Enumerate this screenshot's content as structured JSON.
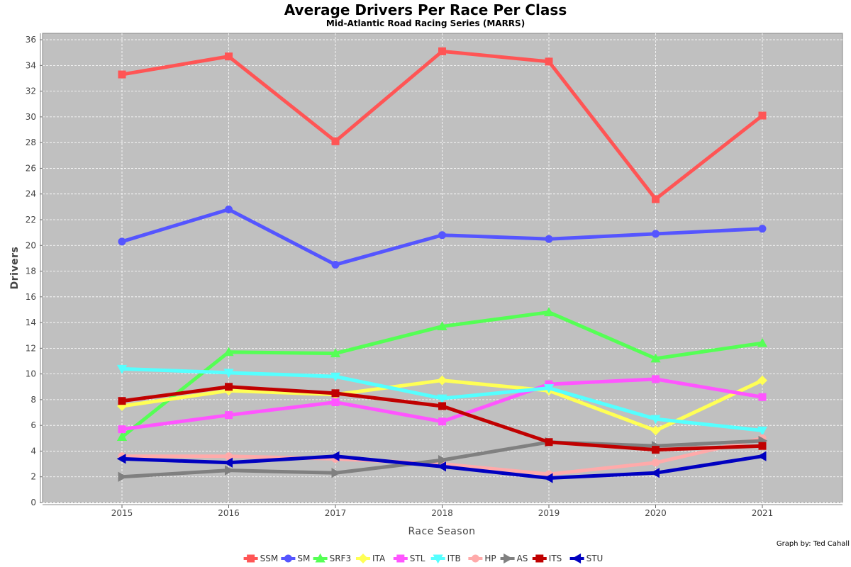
{
  "chart_data": {
    "type": "line",
    "title": "Average Drivers Per Race Per Class",
    "subtitle": "Mid-Atlantic Road Racing Series (MARRS)",
    "xlabel": "Race Season",
    "ylabel": "Drivers",
    "credit": "Graph by: Ted Cahall",
    "categories": [
      "2015",
      "2016",
      "2017",
      "2018",
      "2019",
      "2020",
      "2021"
    ],
    "ylim": [
      0,
      36.5
    ],
    "yticks": [
      "0",
      "2",
      "4",
      "6",
      "8",
      "10",
      "12",
      "14",
      "16",
      "18",
      "20",
      "22",
      "24",
      "26",
      "28",
      "30",
      "32",
      "34",
      "36"
    ],
    "grid": true,
    "legend_position": "bottom",
    "background_color": "#c0c0c0",
    "series": [
      {
        "name": "SSM",
        "color": "#ff5555",
        "marker": "square",
        "values": [
          33.3,
          34.7,
          28.1,
          35.1,
          34.3,
          23.6,
          30.1
        ]
      },
      {
        "name": "SM",
        "color": "#5555ff",
        "marker": "circle",
        "values": [
          20.3,
          22.8,
          18.5,
          20.8,
          20.5,
          20.9,
          21.3
        ]
      },
      {
        "name": "SRF3",
        "color": "#55ff55",
        "marker": "triangle-up",
        "values": [
          5.1,
          11.7,
          11.6,
          13.7,
          14.8,
          11.2,
          12.4
        ]
      },
      {
        "name": "ITA",
        "color": "#ffff55",
        "marker": "diamond",
        "values": [
          7.5,
          8.7,
          8.4,
          9.5,
          8.7,
          5.6,
          9.5
        ]
      },
      {
        "name": "STL",
        "color": "#ff55ff",
        "marker": "square",
        "values": [
          5.7,
          6.8,
          7.8,
          6.3,
          9.2,
          9.6,
          8.2
        ]
      },
      {
        "name": "ITB",
        "color": "#55ffff",
        "marker": "triangle-down",
        "values": [
          10.4,
          10.1,
          9.8,
          8.1,
          8.9,
          6.5,
          5.6
        ]
      },
      {
        "name": "HP",
        "color": "#ffaaaa",
        "marker": "circle",
        "values": [
          3.6,
          3.6,
          3.4,
          3.0,
          2.2,
          3.1,
          5.0
        ]
      },
      {
        "name": "AS",
        "color": "#808080",
        "marker": "triangle-right",
        "values": [
          2.0,
          2.5,
          2.3,
          3.3,
          4.7,
          4.4,
          4.8
        ]
      },
      {
        "name": "ITS",
        "color": "#c00000",
        "marker": "square",
        "values": [
          7.9,
          9.0,
          8.5,
          7.5,
          4.7,
          4.1,
          4.4
        ]
      },
      {
        "name": "STU",
        "color": "#0000c0",
        "marker": "triangle-left",
        "values": [
          3.4,
          3.1,
          3.6,
          2.8,
          1.9,
          2.3,
          3.6
        ]
      }
    ]
  }
}
